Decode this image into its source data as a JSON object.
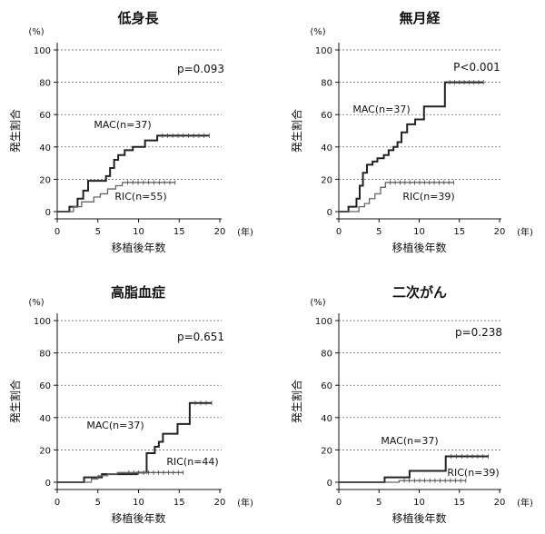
{
  "chart_data": [
    {
      "type": "line",
      "title": "低身長",
      "ylabel": "発生割合",
      "yunit": "(%)",
      "xlabel": "移植後年数",
      "xunit": "(年)",
      "xlim": [
        0,
        20
      ],
      "ylim": [
        0,
        100
      ],
      "xticks": [
        0,
        5,
        10,
        15,
        20
      ],
      "yticks": [
        0,
        20,
        40,
        60,
        80,
        100
      ],
      "grid": true,
      "pvalue": "p=0.093",
      "series": [
        {
          "name": "MAC(n=37)",
          "x": [
            0,
            1.5,
            2.5,
            3.2,
            3.8,
            5.0,
            6.0,
            6.5,
            7.0,
            7.5,
            8.3,
            9.3,
            10.8,
            12.3,
            18.7
          ],
          "y": [
            0,
            3,
            8,
            13,
            19,
            19,
            22,
            27,
            32,
            35,
            38,
            40,
            44,
            47,
            47
          ]
        },
        {
          "name": "RIC(n=55)",
          "x": [
            0,
            2.0,
            3.0,
            4.5,
            5.3,
            6.2,
            7.2,
            8.0,
            14.5
          ],
          "y": [
            0,
            3,
            6,
            9,
            11,
            14,
            16,
            18,
            18
          ]
        }
      ]
    },
    {
      "type": "line",
      "title": "無月経",
      "ylabel": "発生割合",
      "yunit": "(%)",
      "xlabel": "移植後年数",
      "xunit": "(年)",
      "xlim": [
        0,
        20
      ],
      "ylim": [
        0,
        100
      ],
      "xticks": [
        0,
        5,
        10,
        15,
        20
      ],
      "yticks": [
        0,
        20,
        40,
        60,
        80,
        100
      ],
      "grid": true,
      "pvalue": "P<0.001",
      "series": [
        {
          "name": "MAC(n=37)",
          "x": [
            0,
            1.2,
            2.2,
            2.6,
            3.0,
            3.5,
            4.2,
            4.8,
            5.6,
            6.2,
            6.8,
            7.3,
            7.8,
            8.5,
            9.5,
            10.6,
            13.2,
            18.0
          ],
          "y": [
            0,
            3,
            8,
            16,
            24,
            29,
            31,
            33,
            35,
            38,
            40,
            43,
            49,
            54,
            57,
            65,
            80,
            80
          ]
        },
        {
          "name": "RIC(n=39)",
          "x": [
            0,
            2.5,
            3.2,
            3.8,
            4.5,
            5.2,
            5.8,
            14.3
          ],
          "y": [
            0,
            3,
            5,
            8,
            11,
            15,
            18,
            18
          ]
        }
      ]
    },
    {
      "type": "line",
      "title": "高脂血症",
      "ylabel": "発生割合",
      "yunit": "(%)",
      "xlabel": "移植後年数",
      "xunit": "(年)",
      "xlim": [
        0,
        20
      ],
      "ylim": [
        0,
        100
      ],
      "xticks": [
        0,
        5,
        10,
        15,
        20
      ],
      "yticks": [
        0,
        20,
        40,
        60,
        80,
        100
      ],
      "grid": true,
      "pvalue": "p=0.651",
      "series": [
        {
          "name": "MAC(n=37)",
          "x": [
            0,
            3.3,
            4.2,
            5.5,
            7.3,
            8.5,
            9.8,
            10.8,
            11.0,
            12.0,
            12.5,
            13.0,
            14.8,
            16.3,
            19.0
          ],
          "y": [
            0,
            3,
            3,
            5,
            5,
            5,
            6,
            6,
            18,
            22,
            25,
            30,
            36,
            49,
            49
          ]
        },
        {
          "name": "RIC(n=44)",
          "x": [
            0,
            4.2,
            5.0,
            6.2,
            7.4,
            8.2,
            15.5
          ],
          "y": [
            0,
            2,
            4,
            5,
            6,
            6,
            6
          ]
        }
      ]
    },
    {
      "type": "line",
      "title": "二次がん",
      "ylabel": "発生割合",
      "yunit": "(%)",
      "xlabel": "移植後年数",
      "xunit": "(年)",
      "xlim": [
        0,
        20
      ],
      "ylim": [
        0,
        100
      ],
      "xticks": [
        0,
        5,
        10,
        15,
        20
      ],
      "yticks": [
        0,
        20,
        40,
        60,
        80,
        100
      ],
      "grid": true,
      "pvalue": "p=0.238",
      "series": [
        {
          "name": "MAC(n=37)",
          "x": [
            0,
            5.0,
            5.7,
            8.8,
            13.3,
            18.6
          ],
          "y": [
            0,
            0,
            3,
            7,
            16,
            16
          ]
        },
        {
          "name": "RIC(n=39)",
          "x": [
            0,
            7.5,
            15.8
          ],
          "y": [
            0,
            1,
            1
          ]
        }
      ]
    }
  ]
}
